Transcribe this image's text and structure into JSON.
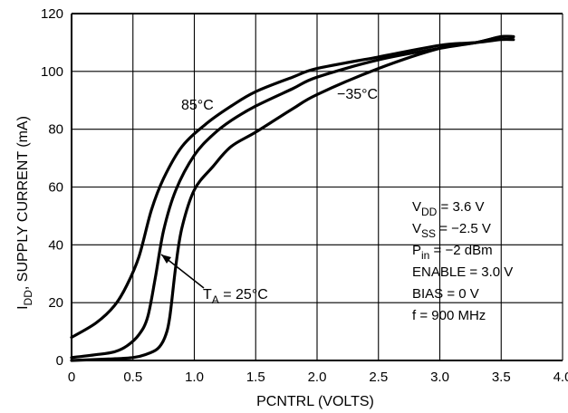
{
  "chart_data": {
    "type": "line",
    "title": "",
    "xlabel": "PCNTRL (VOLTS)",
    "ylabel": "I_DD, SUPPLY CURRENT (mA)",
    "ylabel_parts": {
      "main": "I",
      "sub": "DD",
      "rest": ", SUPPLY CURRENT (mA)"
    },
    "xlim": [
      0,
      4.0
    ],
    "ylim": [
      0,
      120
    ],
    "xticks": [
      0,
      0.5,
      1.0,
      1.5,
      2.0,
      2.5,
      3.0,
      3.5,
      4.0
    ],
    "xtick_labels": [
      "0",
      "0.5",
      "1.0",
      "1.5",
      "2.0",
      "2.5",
      "3.0",
      "3.5",
      "4.0"
    ],
    "yticks": [
      0,
      20,
      40,
      60,
      80,
      100,
      120
    ],
    "ytick_labels": [
      "0",
      "20",
      "40",
      "60",
      "80",
      "100",
      "120"
    ],
    "grid": true,
    "series": [
      {
        "name": "85°C",
        "x": [
          0,
          0.2,
          0.35,
          0.45,
          0.55,
          0.65,
          0.75,
          0.9,
          1.1,
          1.3,
          1.5,
          1.8,
          2.0,
          2.5,
          3.0,
          3.3,
          3.5,
          3.6
        ],
        "y": [
          8,
          13,
          19,
          26,
          36,
          52,
          63,
          74,
          82,
          88,
          93,
          98,
          101,
          105,
          109,
          110,
          111,
          111
        ]
      },
      {
        "name": "T_A = 25°C",
        "x": [
          0,
          0.2,
          0.35,
          0.45,
          0.55,
          0.62,
          0.68,
          0.75,
          0.85,
          1.0,
          1.15,
          1.3,
          1.5,
          1.8,
          2.0,
          2.5,
          3.0,
          3.3,
          3.5,
          3.6
        ],
        "y": [
          1,
          2,
          3,
          5,
          9,
          15,
          28,
          45,
          59,
          71,
          78,
          83,
          88,
          94,
          98,
          104,
          108,
          110,
          112,
          112
        ]
      },
      {
        "name": "−35°C",
        "x": [
          0,
          0.3,
          0.5,
          0.6,
          0.7,
          0.76,
          0.8,
          0.85,
          0.9,
          1.0,
          1.15,
          1.3,
          1.5,
          1.8,
          2.0,
          2.5,
          3.0,
          3.3,
          3.5,
          3.6
        ],
        "y": [
          0,
          0.5,
          1,
          2,
          4,
          8,
          15,
          33,
          46,
          59,
          67,
          74,
          79,
          87,
          92,
          101,
          108,
          110,
          112,
          112
        ]
      }
    ],
    "annotations": {
      "label_85": "85°C",
      "label_m35": "−35°C",
      "ta_main": "T",
      "ta_sub": "A",
      "ta_rest": " = 25°C",
      "conditions": [
        {
          "main": "V",
          "sub": "DD",
          "rest": " = 3.6 V"
        },
        {
          "main": "V",
          "sub": "SS",
          "rest": " = −2.5 V"
        },
        {
          "main": "P",
          "sub": "in",
          "rest": " = −2 dBm"
        },
        {
          "main": "ENABLE = 3.0 V",
          "sub": "",
          "rest": ""
        },
        {
          "main": "BIAS = 0 V",
          "sub": "",
          "rest": ""
        },
        {
          "main": "f = 900 MHz",
          "sub": "",
          "rest": ""
        }
      ]
    }
  }
}
